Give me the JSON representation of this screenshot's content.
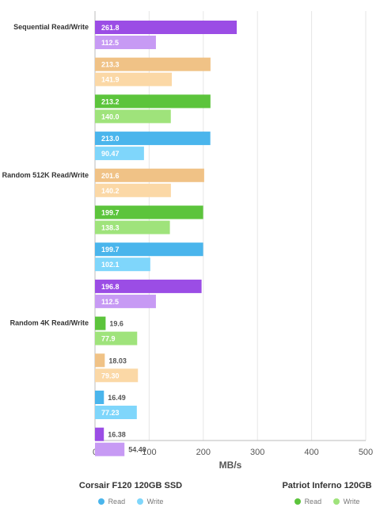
{
  "chart_data": {
    "type": "bar",
    "orientation": "horizontal",
    "xlabel": "MB/s",
    "xlim": [
      0,
      500
    ],
    "xticks": [
      "0",
      "100",
      "200",
      "300",
      "400",
      "500"
    ],
    "grid": true,
    "legend_position": "bottom",
    "groups": [
      {
        "label": "Sequential Read/Write",
        "bars": [
          {
            "read": 261.8,
            "write": 112.5,
            "read_label": "261.8",
            "write_label": "112.5",
            "read_color": "#9b4de5",
            "write_color": "#c79af4"
          },
          {
            "read": 213.3,
            "write": 141.9,
            "read_label": "213.3",
            "write_label": "141.9",
            "read_color": "#f0c286",
            "write_color": "#fbd8a6"
          },
          {
            "read": 213.2,
            "write": 140.0,
            "read_label": "213.2",
            "write_label": "140.0",
            "read_color": "#5cc43c",
            "write_color": "#9fe37b"
          },
          {
            "read": 213.0,
            "write": 90.47,
            "read_label": "213.0",
            "write_label": "90.47",
            "read_color": "#4ab5ec",
            "write_color": "#7fd6fb"
          }
        ]
      },
      {
        "label": "Random 512K Read/Write",
        "bars": [
          {
            "read": 201.6,
            "write": 140.2,
            "read_label": "201.6",
            "write_label": "140.2",
            "read_color": "#f0c286",
            "write_color": "#fbd8a6"
          },
          {
            "read": 199.7,
            "write": 138.3,
            "read_label": "199.7",
            "write_label": "138.3",
            "read_color": "#5cc43c",
            "write_color": "#9fe37b"
          },
          {
            "read": 199.7,
            "write": 102.1,
            "read_label": "199.7",
            "write_label": "102.1",
            "read_color": "#4ab5ec",
            "write_color": "#7fd6fb"
          },
          {
            "read": 196.8,
            "write": 112.5,
            "read_label": "196.8",
            "write_label": "112.5",
            "read_color": "#9b4de5",
            "write_color": "#c79af4"
          }
        ]
      },
      {
        "label": "Random 4K Read/Write",
        "bars": [
          {
            "read": 19.6,
            "write": 77.9,
            "read_label": "19.6",
            "write_label": "77.9",
            "read_color": "#5cc43c",
            "write_color": "#9fe37b"
          },
          {
            "read": 18.03,
            "write": 79.3,
            "read_label": "18.03",
            "write_label": "79.30",
            "read_color": "#f0c286",
            "write_color": "#fbd8a6"
          },
          {
            "read": 16.49,
            "write": 77.23,
            "read_label": "16.49",
            "write_label": "77.23",
            "read_color": "#4ab5ec",
            "write_color": "#7fd6fb"
          },
          {
            "read": 16.38,
            "write": 54.4,
            "read_label": "16.38",
            "write_label": "54.40",
            "read_color": "#9b4de5",
            "write_color": "#c79af4"
          }
        ]
      }
    ],
    "legends": [
      {
        "title": "Corsair F120 120GB SSD",
        "items": [
          {
            "label": "Read",
            "color": "#4ab5ec"
          },
          {
            "label": "Write",
            "color": "#7fd6fb"
          }
        ]
      },
      {
        "title": "Patriot Inferno 120GB",
        "items": [
          {
            "label": "Read",
            "color": "#5cc43c"
          },
          {
            "label": "Write",
            "color": "#9fe37b"
          }
        ]
      }
    ]
  }
}
